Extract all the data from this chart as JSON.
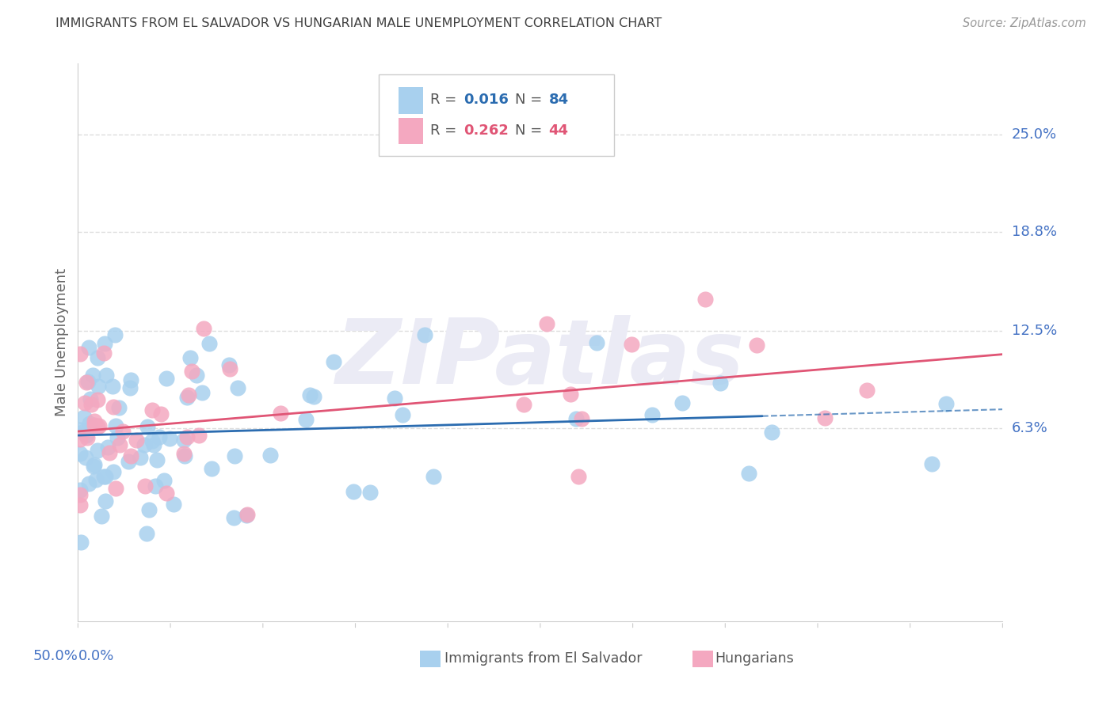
{
  "title": "IMMIGRANTS FROM EL SALVADOR VS HUNGARIAN MALE UNEMPLOYMENT CORRELATION CHART",
  "source": "Source: ZipAtlas.com",
  "ylabel": "Male Unemployment",
  "ytick_labels": [
    "25.0%",
    "18.8%",
    "12.5%",
    "6.3%"
  ],
  "ytick_values": [
    0.25,
    0.188,
    0.125,
    0.063
  ],
  "xlim": [
    0.0,
    0.5
  ],
  "ylim": [
    -0.06,
    0.295
  ],
  "blue_dot_color": "#A8D0EE",
  "pink_dot_color": "#F4A8C0",
  "blue_line_color": "#2B6CB0",
  "pink_line_color": "#E05575",
  "axis_label_color": "#4472C4",
  "title_color": "#404040",
  "source_color": "#999999",
  "grid_color": "#DDDDDD",
  "background_color": "#FFFFFF",
  "legend_r_blue": "0.016",
  "legend_n_blue": "84",
  "legend_r_pink": "0.262",
  "legend_n_pink": "44",
  "legend_text_color": "#555555",
  "watermark_text": "ZIPatlas",
  "watermark_color": "#EBEBF5"
}
